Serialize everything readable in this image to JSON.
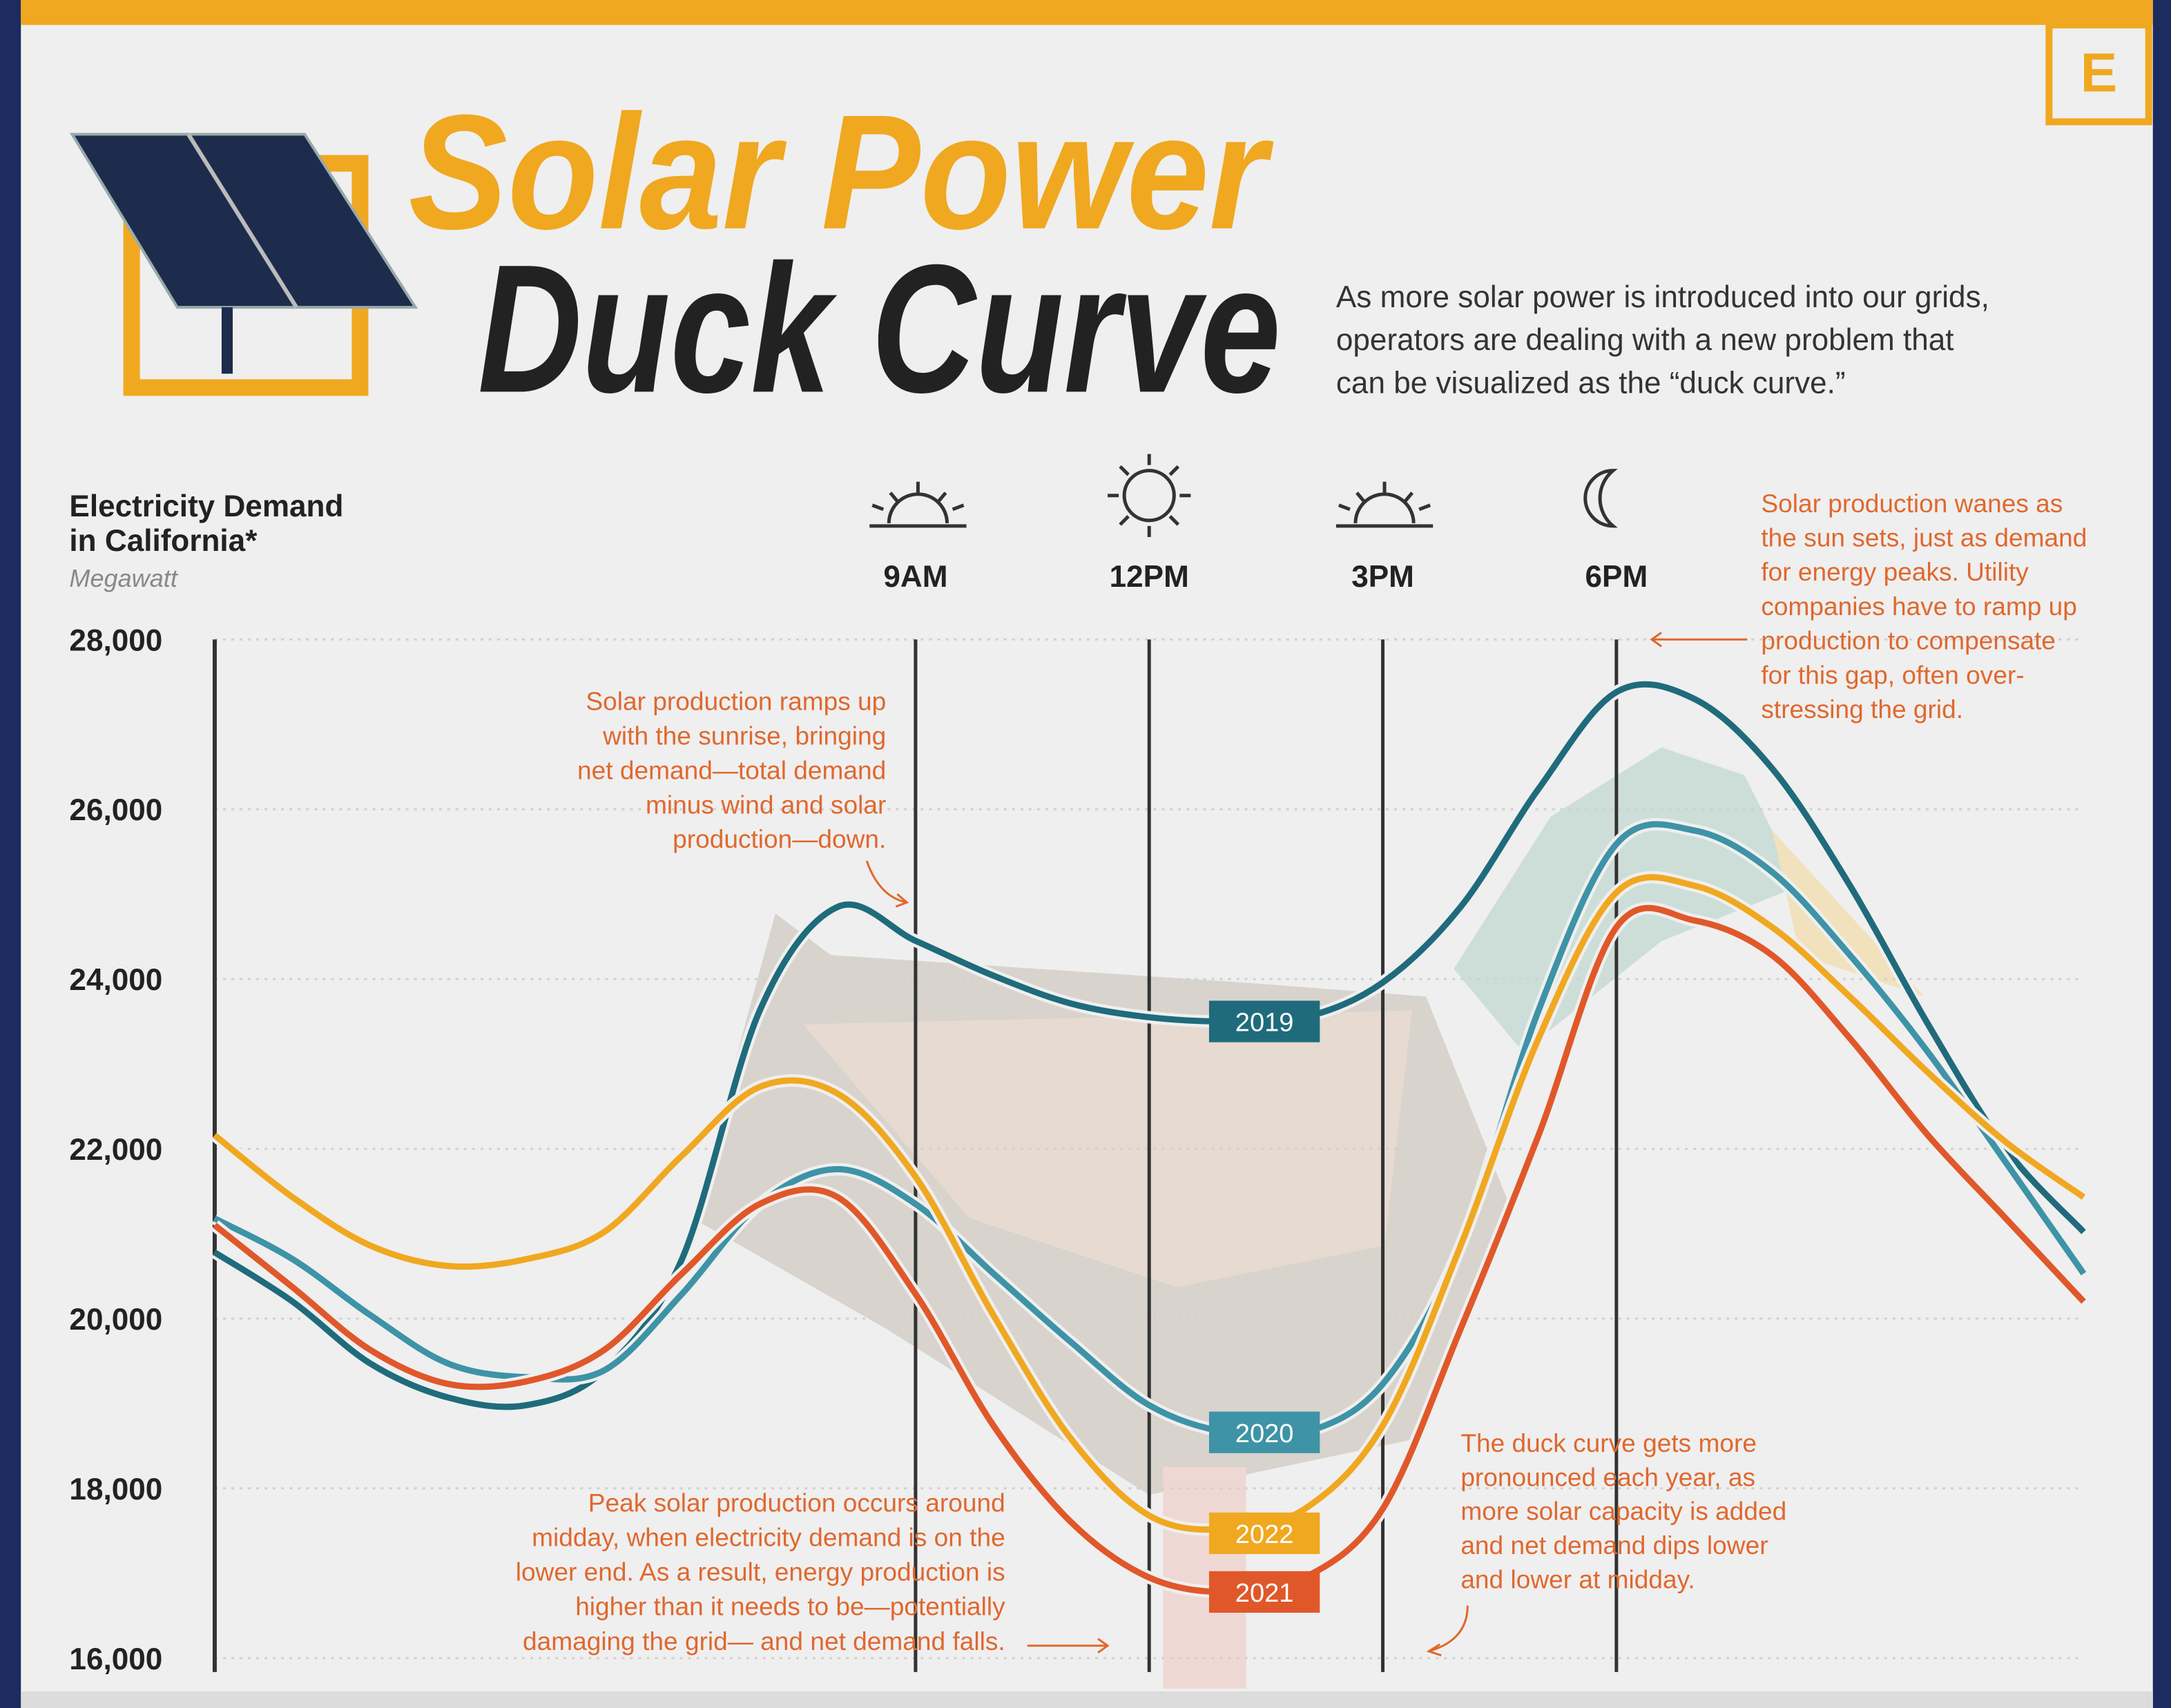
{
  "chart_data": {
    "type": "line",
    "title": [
      "Solar Power",
      "Duck Curve"
    ],
    "description": [
      "As more solar power is introduced into our grids,",
      "operators are dealing with a new problem that",
      "can be visualized as the “duck curve.”"
    ],
    "y_label": [
      "Electricity Demand",
      "in California*"
    ],
    "y_unit": "Megawatt",
    "logo": "E",
    "x": [
      0,
      1,
      2,
      3,
      4,
      5,
      6,
      7,
      8,
      9,
      10,
      11,
      12,
      13,
      14,
      15,
      16,
      17,
      18,
      19,
      20,
      21,
      22,
      23,
      24
    ],
    "xlim": [
      0,
      24
    ],
    "xticks": [
      {
        "value": 9,
        "label": "9AM"
      },
      {
        "value": 12,
        "label": "12PM"
      },
      {
        "value": 15,
        "label": "3PM"
      },
      {
        "value": 18,
        "label": "6PM"
      }
    ],
    "ylim": [
      16000,
      28000
    ],
    "yticks": [
      {
        "value": 16000,
        "label": "16,000"
      },
      {
        "value": 18000,
        "label": "18,000"
      },
      {
        "value": 20000,
        "label": "20,000"
      },
      {
        "value": 22000,
        "label": "22,000"
      },
      {
        "value": 24000,
        "label": "24,000"
      },
      {
        "value": 26000,
        "label": "26,000"
      },
      {
        "value": 28000,
        "label": "28,000"
      }
    ],
    "grid": true,
    "series": [
      {
        "name": "2019",
        "color": "#1f6b7c",
        "values": [
          20780,
          20200,
          19470,
          19070,
          18980,
          19390,
          20700,
          23630,
          24850,
          24450,
          24040,
          23710,
          23550,
          23500,
          23550,
          23960,
          24850,
          26240,
          27380,
          27300,
          26480,
          25100,
          23470,
          22000,
          21020
        ]
      },
      {
        "name": "2020",
        "color": "#3e93a6",
        "values": [
          21180,
          20700,
          20040,
          19470,
          19310,
          19390,
          20290,
          21350,
          21760,
          21350,
          20530,
          19720,
          18980,
          18660,
          18660,
          19230,
          20860,
          23630,
          25590,
          25750,
          25260,
          24280,
          23140,
          21840,
          20530
        ]
      },
      {
        "name": "2022",
        "color": "#f0a820",
        "values": [
          22160,
          21430,
          20860,
          20620,
          20700,
          21020,
          21920,
          22730,
          22650,
          21670,
          20040,
          18580,
          17680,
          17520,
          17760,
          18740,
          20860,
          23300,
          25020,
          25100,
          24610,
          23790,
          22900,
          22080,
          21430
        ]
      },
      {
        "name": "2021",
        "color": "#e0582a",
        "values": [
          21100,
          20370,
          19630,
          19230,
          19260,
          19630,
          20530,
          21350,
          21430,
          20290,
          18740,
          17600,
          16950,
          16780,
          16950,
          17760,
          19880,
          22160,
          24610,
          24690,
          24280,
          23300,
          22160,
          21180,
          20200
        ]
      }
    ],
    "annotations": [
      [
        "Solar production ramps up",
        "with the sunrise, bringing",
        "net demand—total demand",
        "minus wind and solar",
        "production—down."
      ],
      [
        "Solar production wanes as",
        "the sun sets, just as demand",
        "for energy peaks. Utility",
        "companies have to ramp up",
        "production to compensate",
        "for this gap, often over-",
        "stressing the grid."
      ],
      [
        "Peak solar production occurs around",
        "midday, when electricity demand is on the",
        "lower end. As a result, energy production is",
        "higher than it needs to be—potentially",
        "damaging the grid— and net demand falls."
      ],
      [
        "The duck curve gets more",
        "pronounced each year, as",
        "more solar capacity is added",
        "and net demand dips lower",
        "and lower at midday."
      ]
    ]
  }
}
